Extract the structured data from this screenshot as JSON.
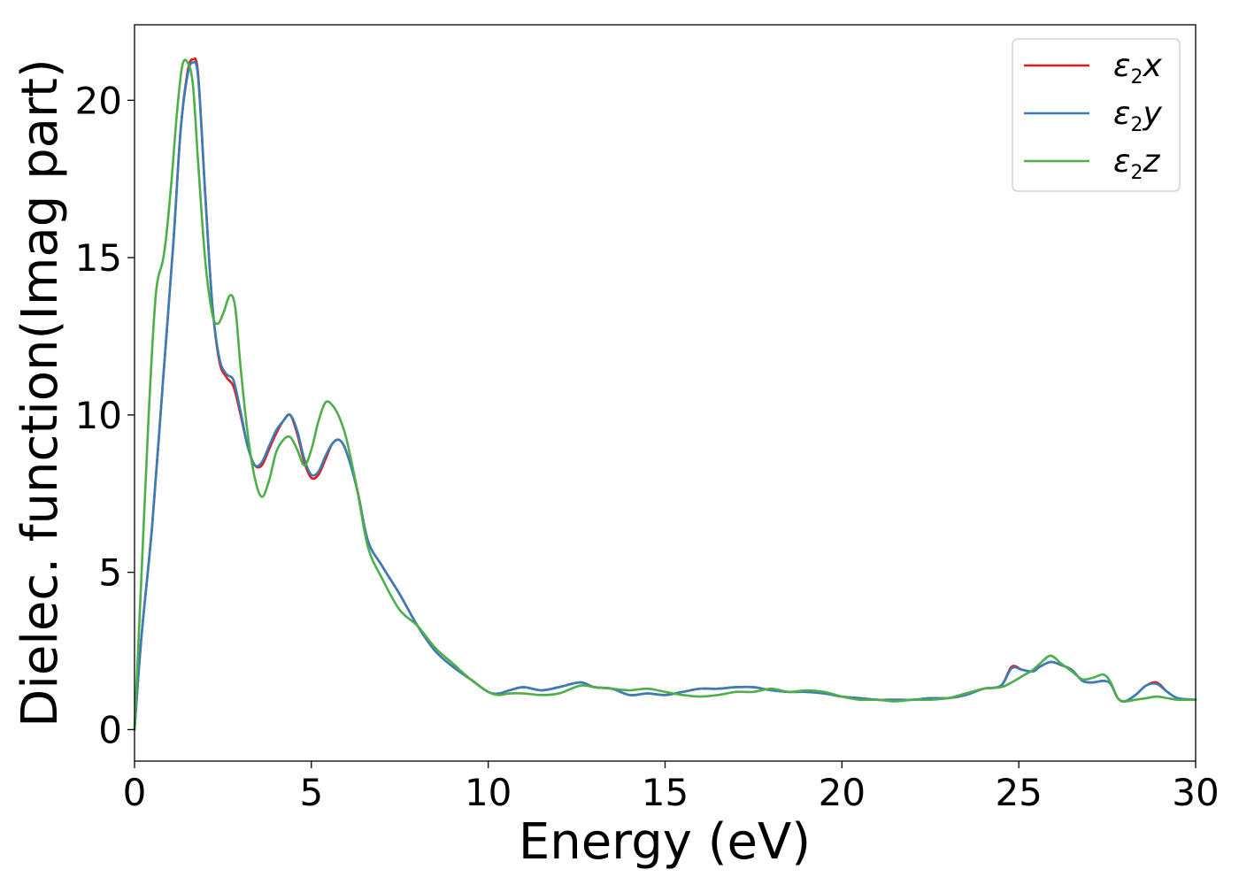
{
  "chart_data": {
    "type": "line",
    "xlabel": "Energy (eV)",
    "ylabel": "Dielec. function(Imag part)",
    "xlim": [
      0,
      30
    ],
    "ylim": [
      -1.0,
      22.4
    ],
    "x_ticks": [
      0,
      5,
      10,
      15,
      20,
      25,
      30
    ],
    "y_ticks": [
      0,
      5,
      10,
      15,
      20
    ],
    "grid": false,
    "legend_position": "top-right",
    "series": [
      {
        "name": "ε2x",
        "legend": {
          "base": "ε",
          "sub": "2",
          "axis": "x"
        },
        "color": "#e41a1c",
        "x": [
          0,
          0.2,
          0.5,
          0.8,
          1.1,
          1.3,
          1.5,
          1.65,
          1.8,
          2.0,
          2.2,
          2.4,
          2.6,
          2.8,
          3.0,
          3.2,
          3.4,
          3.6,
          3.8,
          4.0,
          4.2,
          4.4,
          4.6,
          4.8,
          5.0,
          5.2,
          5.4,
          5.6,
          5.8,
          6.0,
          6.3,
          6.6,
          7.0,
          7.5,
          8.0,
          8.5,
          9.0,
          9.5,
          10.0,
          10.3,
          10.6,
          11.0,
          11.5,
          12.0,
          12.6,
          13.0,
          13.5,
          14.0,
          14.5,
          15.0,
          15.5,
          16.0,
          16.5,
          17.0,
          17.5,
          18.0,
          18.5,
          19.0,
          19.5,
          20.0,
          20.5,
          21.0,
          21.5,
          22.0,
          22.5,
          23.0,
          23.5,
          24.0,
          24.5,
          24.8,
          25.1,
          25.4,
          25.6,
          25.9,
          26.2,
          26.5,
          26.8,
          27.1,
          27.4,
          27.6,
          27.8,
          28.0,
          28.3,
          28.6,
          28.9,
          29.2,
          29.5,
          30.0
        ],
        "values": [
          0.0,
          3.0,
          6.5,
          11.0,
          15.5,
          19.0,
          20.9,
          21.3,
          20.8,
          17.0,
          13.5,
          11.7,
          11.2,
          10.9,
          10.0,
          9.0,
          8.4,
          8.4,
          8.9,
          9.4,
          9.8,
          10.0,
          9.4,
          8.5,
          8.0,
          8.1,
          8.6,
          9.1,
          9.2,
          8.8,
          7.6,
          6.0,
          5.2,
          4.3,
          3.3,
          2.5,
          2.0,
          1.6,
          1.2,
          1.15,
          1.25,
          1.35,
          1.25,
          1.35,
          1.5,
          1.35,
          1.3,
          1.1,
          1.15,
          1.1,
          1.2,
          1.3,
          1.3,
          1.35,
          1.35,
          1.25,
          1.2,
          1.2,
          1.15,
          1.05,
          1.0,
          0.95,
          0.95,
          0.95,
          1.0,
          1.0,
          1.1,
          1.3,
          1.4,
          2.0,
          1.9,
          1.85,
          2.0,
          2.15,
          2.05,
          1.9,
          1.55,
          1.5,
          1.55,
          1.45,
          1.0,
          0.9,
          1.1,
          1.4,
          1.5,
          1.2,
          1.0,
          0.95
        ]
      },
      {
        "name": "ε2y",
        "legend": {
          "base": "ε",
          "sub": "2",
          "axis": "y"
        },
        "color": "#377eb8",
        "x": [
          0,
          0.2,
          0.5,
          0.8,
          1.1,
          1.3,
          1.5,
          1.65,
          1.8,
          2.0,
          2.2,
          2.4,
          2.6,
          2.8,
          3.0,
          3.2,
          3.4,
          3.6,
          3.8,
          4.0,
          4.2,
          4.4,
          4.6,
          4.8,
          5.0,
          5.2,
          5.4,
          5.6,
          5.8,
          6.0,
          6.3,
          6.6,
          7.0,
          7.5,
          8.0,
          8.5,
          9.0,
          9.5,
          10.0,
          10.3,
          10.6,
          11.0,
          11.5,
          12.0,
          12.6,
          13.0,
          13.5,
          14.0,
          14.5,
          15.0,
          15.5,
          16.0,
          16.5,
          17.0,
          17.5,
          18.0,
          18.5,
          19.0,
          19.5,
          20.0,
          20.5,
          21.0,
          21.5,
          22.0,
          22.5,
          23.0,
          23.5,
          24.0,
          24.5,
          24.8,
          25.1,
          25.4,
          25.6,
          25.9,
          26.2,
          26.5,
          26.8,
          27.1,
          27.4,
          27.6,
          27.8,
          28.0,
          28.3,
          28.6,
          28.9,
          29.2,
          29.5,
          30.0
        ],
        "values": [
          0.0,
          3.0,
          6.5,
          11.0,
          15.5,
          19.0,
          20.8,
          21.2,
          20.7,
          17.0,
          13.5,
          11.8,
          11.3,
          11.1,
          10.1,
          9.0,
          8.4,
          8.5,
          9.0,
          9.5,
          9.8,
          10.0,
          9.5,
          8.6,
          8.1,
          8.2,
          8.7,
          9.1,
          9.2,
          8.8,
          7.6,
          6.0,
          5.2,
          4.3,
          3.3,
          2.5,
          2.0,
          1.6,
          1.2,
          1.15,
          1.25,
          1.35,
          1.25,
          1.35,
          1.5,
          1.35,
          1.3,
          1.1,
          1.15,
          1.1,
          1.2,
          1.3,
          1.3,
          1.35,
          1.35,
          1.25,
          1.2,
          1.2,
          1.15,
          1.05,
          1.0,
          0.95,
          0.95,
          0.95,
          1.0,
          1.0,
          1.1,
          1.3,
          1.4,
          1.95,
          1.9,
          1.85,
          2.0,
          2.15,
          2.05,
          1.9,
          1.55,
          1.5,
          1.55,
          1.45,
          1.0,
          0.9,
          1.1,
          1.4,
          1.45,
          1.2,
          1.0,
          0.95
        ]
      },
      {
        "name": "ε2z",
        "legend": {
          "base": "ε",
          "sub": "2",
          "axis": "z"
        },
        "color": "#4daf4a",
        "x": [
          0,
          0.2,
          0.4,
          0.6,
          0.8,
          0.9,
          1.05,
          1.2,
          1.35,
          1.5,
          1.65,
          1.8,
          2.0,
          2.2,
          2.35,
          2.5,
          2.7,
          2.85,
          3.0,
          3.2,
          3.4,
          3.6,
          3.8,
          4.0,
          4.2,
          4.4,
          4.6,
          4.8,
          5.0,
          5.2,
          5.4,
          5.6,
          5.8,
          6.0,
          6.3,
          6.6,
          7.0,
          7.5,
          8.0,
          8.5,
          9.0,
          9.5,
          10.0,
          10.3,
          10.6,
          11.0,
          11.5,
          12.0,
          12.6,
          13.0,
          13.5,
          14.0,
          14.5,
          15.0,
          15.5,
          16.0,
          16.5,
          17.0,
          17.5,
          18.0,
          18.5,
          19.0,
          19.5,
          20.0,
          20.5,
          21.0,
          21.5,
          22.0,
          22.5,
          23.0,
          23.5,
          24.0,
          24.5,
          24.8,
          25.1,
          25.4,
          25.6,
          25.9,
          26.2,
          26.5,
          26.8,
          27.1,
          27.4,
          27.6,
          27.8,
          28.0,
          28.3,
          28.6,
          28.9,
          29.2,
          29.5,
          30.0
        ],
        "values": [
          0.0,
          5.0,
          10.0,
          13.8,
          14.9,
          15.7,
          17.5,
          19.6,
          21.1,
          21.2,
          20.5,
          18.0,
          14.9,
          13.2,
          12.9,
          13.2,
          13.8,
          13.4,
          11.5,
          9.4,
          8.0,
          7.4,
          7.9,
          8.8,
          9.2,
          9.3,
          8.9,
          8.4,
          8.9,
          9.8,
          10.4,
          10.3,
          9.9,
          9.2,
          7.6,
          5.8,
          4.8,
          3.8,
          3.3,
          2.6,
          2.1,
          1.6,
          1.2,
          1.1,
          1.15,
          1.15,
          1.1,
          1.15,
          1.4,
          1.35,
          1.3,
          1.25,
          1.3,
          1.2,
          1.1,
          1.05,
          1.1,
          1.2,
          1.2,
          1.3,
          1.2,
          1.25,
          1.2,
          1.05,
          0.95,
          0.95,
          0.9,
          0.95,
          0.95,
          1.0,
          1.15,
          1.3,
          1.35,
          1.5,
          1.7,
          1.9,
          2.1,
          2.35,
          2.1,
          1.85,
          1.6,
          1.65,
          1.75,
          1.5,
          1.0,
          0.9,
          0.95,
          1.0,
          1.05,
          1.0,
          0.95,
          0.95
        ]
      }
    ]
  }
}
